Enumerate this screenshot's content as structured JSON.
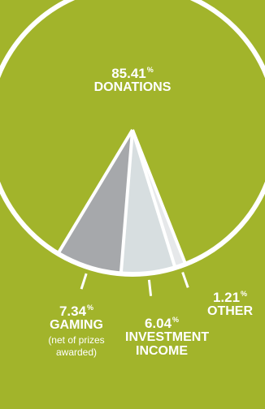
{
  "chart_data": {
    "type": "pie",
    "slices": [
      {
        "label": "DONATIONS",
        "value": 85.41,
        "display": "85.41",
        "unit": "%",
        "color": "#a2b42b"
      },
      {
        "label": "GAMING",
        "value": 7.34,
        "display": "7.34",
        "unit": "%",
        "note": "(net of prizes awarded)",
        "color": "#a6a8ab"
      },
      {
        "label": "INVESTMENT INCOME",
        "value": 6.04,
        "display": "6.04",
        "unit": "%",
        "color": "#d7dee0"
      },
      {
        "label": "OTHER",
        "value": 1.21,
        "display": "1.21",
        "unit": "%",
        "color": "#e6e8ea"
      }
    ]
  }
}
